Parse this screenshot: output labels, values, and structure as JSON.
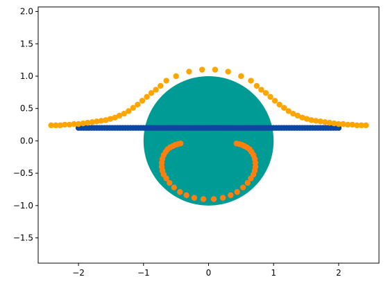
{
  "chart_data": {
    "type": "scatter",
    "title": "",
    "xlabel": "",
    "ylabel": "",
    "xlim": [
      -2.62,
      2.62
    ],
    "ylim": [
      -1.89,
      2.07
    ],
    "grid": false,
    "x_ticks": [
      -2,
      -1,
      0,
      1,
      2
    ],
    "x_tick_labels": [
      "−2",
      "−1",
      "0",
      "1",
      "2"
    ],
    "y_ticks": [
      -1.5,
      -1.0,
      -0.5,
      0.0,
      0.5,
      1.0,
      1.5,
      2.0
    ],
    "y_tick_labels": [
      "−1.5",
      "−1.0",
      "−0.5",
      "0.0",
      "0.5",
      "1.0",
      "1.5",
      "2.0"
    ],
    "circle": {
      "center": [
        0,
        0
      ],
      "radius": 1.0,
      "color": "#009b95"
    },
    "series": [
      {
        "marker": "line-of-points",
        "color": "#0d47a1",
        "x_range": [
          -2.0,
          2.0
        ],
        "y": 0.2,
        "count": 101
      },
      {
        "marker": "bell-curve-points",
        "color": "#ffa500",
        "x": [
          -2.42,
          -2.35,
          -2.28,
          -2.21,
          -2.14,
          -2.07,
          -2.0,
          -1.93,
          -1.86,
          -1.79,
          -1.72,
          -1.65,
          -1.58,
          -1.51,
          -1.44,
          -1.37,
          -1.3,
          -1.23,
          -1.16,
          -1.09,
          -1.02,
          -0.95,
          -0.88,
          -0.81,
          -0.74,
          -0.65,
          -0.5,
          -0.3,
          -0.1,
          0.1,
          0.3,
          0.5,
          0.65,
          0.74,
          0.81,
          0.88,
          0.95,
          1.02,
          1.09,
          1.16,
          1.23,
          1.3,
          1.37,
          1.44,
          1.51,
          1.58,
          1.65,
          1.72,
          1.79,
          1.86,
          1.93,
          2.0,
          2.07,
          2.14,
          2.21,
          2.28,
          2.35,
          2.42
        ],
        "y": [
          0.24,
          0.24,
          0.24,
          0.25,
          0.25,
          0.26,
          0.26,
          0.27,
          0.28,
          0.29,
          0.3,
          0.31,
          0.32,
          0.34,
          0.36,
          0.39,
          0.42,
          0.46,
          0.51,
          0.56,
          0.62,
          0.68,
          0.74,
          0.79,
          0.85,
          0.93,
          1.0,
          1.07,
          1.1,
          1.1,
          1.07,
          1.0,
          0.93,
          0.85,
          0.79,
          0.74,
          0.68,
          0.62,
          0.56,
          0.51,
          0.46,
          0.42,
          0.39,
          0.36,
          0.34,
          0.32,
          0.31,
          0.3,
          0.29,
          0.28,
          0.27,
          0.26,
          0.26,
          0.25,
          0.25,
          0.24,
          0.24,
          0.24
        ]
      },
      {
        "marker": "arc-points",
        "color": "#ff7f0e",
        "x": [
          -0.43,
          -0.47,
          -0.51,
          -0.55,
          -0.59,
          -0.63,
          -0.66,
          -0.69,
          -0.71,
          -0.72,
          -0.72,
          -0.71,
          -0.69,
          -0.65,
          -0.6,
          -0.53,
          -0.44,
          -0.34,
          -0.22,
          -0.08,
          0.08,
          0.22,
          0.34,
          0.44,
          0.53,
          0.6,
          0.65,
          0.69,
          0.71,
          0.72,
          0.72,
          0.71,
          0.69,
          0.66,
          0.63,
          0.59,
          0.55,
          0.51,
          0.47,
          0.43
        ],
        "y": [
          -0.04,
          -0.05,
          -0.06,
          -0.08,
          -0.1,
          -0.13,
          -0.17,
          -0.22,
          -0.28,
          -0.34,
          -0.4,
          -0.46,
          -0.52,
          -0.58,
          -0.65,
          -0.72,
          -0.79,
          -0.84,
          -0.88,
          -0.9,
          -0.9,
          -0.88,
          -0.84,
          -0.79,
          -0.72,
          -0.65,
          -0.58,
          -0.52,
          -0.46,
          -0.4,
          -0.34,
          -0.28,
          -0.22,
          -0.17,
          -0.13,
          -0.1,
          -0.08,
          -0.06,
          -0.05,
          -0.04
        ]
      }
    ]
  }
}
